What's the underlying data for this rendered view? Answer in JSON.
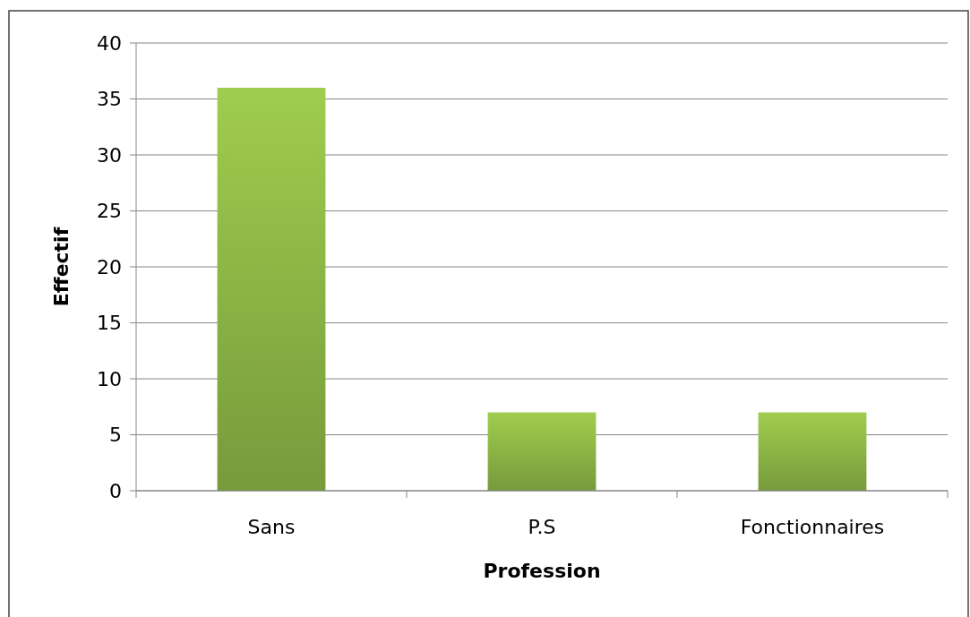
{
  "chart_data": {
    "type": "bar",
    "xlabel": "Profession",
    "ylabel": "Effectif",
    "categories": [
      "Sans",
      "P.S",
      "Fonctionnaires"
    ],
    "values": [
      36,
      7,
      7
    ],
    "color": "#8cb545",
    "ylim": [
      0,
      40
    ],
    "yticks": [
      0,
      5,
      10,
      15,
      20,
      25,
      30,
      35,
      40
    ],
    "grid": "y"
  }
}
